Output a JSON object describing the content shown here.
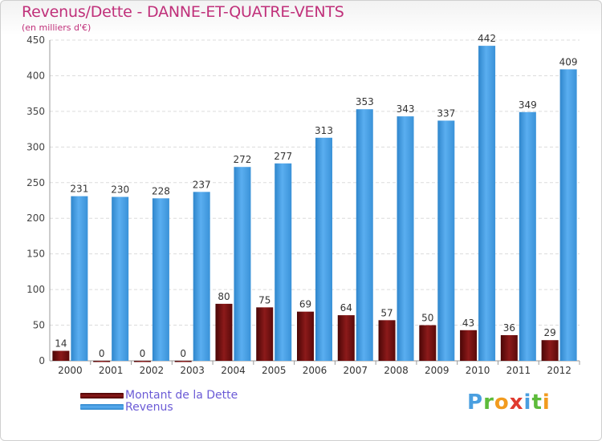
{
  "chart_data": {
    "type": "bar",
    "title": "Revenus/Dette - DANNE-ET-QUATRE-VENTS",
    "subtitle": "(en milliers d'€)",
    "categories": [
      "2000",
      "2001",
      "2002",
      "2003",
      "2004",
      "2005",
      "2006",
      "2007",
      "2008",
      "2009",
      "2010",
      "2011",
      "2012"
    ],
    "series": [
      {
        "name": "Montant de la Dette",
        "color": "#7a1212",
        "values": [
          14,
          0,
          0,
          0,
          80,
          75,
          69,
          64,
          57,
          50,
          43,
          36,
          29
        ]
      },
      {
        "name": "Revenus",
        "color": "#3d97dd",
        "values": [
          231,
          230,
          228,
          237,
          272,
          277,
          313,
          353,
          343,
          337,
          442,
          349,
          409
        ]
      }
    ],
    "ylim": [
      0,
      450
    ],
    "yticks": [
      0,
      50,
      100,
      150,
      200,
      250,
      300,
      350,
      400,
      450
    ],
    "grid": true,
    "legend": "bottom-left"
  },
  "logo": {
    "letters": [
      "P",
      "r",
      "o",
      "x",
      "i",
      "t",
      "i"
    ]
  }
}
